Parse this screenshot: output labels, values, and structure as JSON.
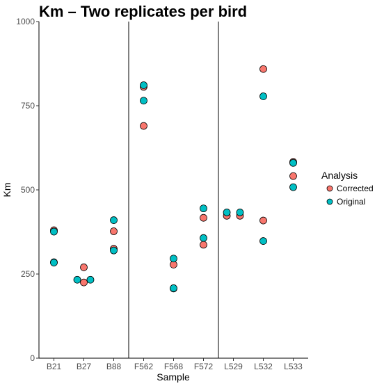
{
  "chart_data": {
    "type": "scatter",
    "title": "Km – Two replicates per bird",
    "xlabel": "Sample",
    "ylabel": "Km",
    "categories": [
      "B21",
      "B27",
      "B88",
      "F562",
      "F568",
      "F572",
      "L529",
      "L532",
      "L533"
    ],
    "ylim": [
      0,
      1000
    ],
    "yticks": [
      0,
      250,
      500,
      750,
      1000
    ],
    "grid": false,
    "legend": {
      "title": "Analysis",
      "position": "right"
    },
    "group_separators_after": [
      "B88",
      "F572"
    ],
    "series": [
      {
        "name": "Corrected",
        "color": "#F8766D",
        "points": [
          {
            "x": "B21",
            "y": 380,
            "offset": 0
          },
          {
            "x": "B21",
            "y": 285,
            "offset": 0
          },
          {
            "x": "B27",
            "y": 270,
            "offset": 0
          },
          {
            "x": "B27",
            "y": 225,
            "offset": 0
          },
          {
            "x": "B88",
            "y": 377,
            "offset": 0
          },
          {
            "x": "B88",
            "y": 325,
            "offset": 0
          },
          {
            "x": "F562",
            "y": 806,
            "offset": 0
          },
          {
            "x": "F562",
            "y": 690,
            "offset": 0
          },
          {
            "x": "F568",
            "y": 278,
            "offset": 0
          },
          {
            "x": "F568",
            "y": 207,
            "offset": 0
          },
          {
            "x": "F572",
            "y": 417,
            "offset": 0
          },
          {
            "x": "F572",
            "y": 337,
            "offset": 0
          },
          {
            "x": "L529",
            "y": 423,
            "offset": -0.22
          },
          {
            "x": "L529",
            "y": 423,
            "offset": 0.22
          },
          {
            "x": "L532",
            "y": 859,
            "offset": 0
          },
          {
            "x": "L532",
            "y": 409,
            "offset": 0
          },
          {
            "x": "L533",
            "y": 583,
            "offset": 0
          },
          {
            "x": "L533",
            "y": 541,
            "offset": 0
          }
        ]
      },
      {
        "name": "Original",
        "color": "#00BFC4",
        "points": [
          {
            "x": "B21",
            "y": 376,
            "offset": 0
          },
          {
            "x": "B21",
            "y": 284,
            "offset": 0
          },
          {
            "x": "B27",
            "y": 233,
            "offset": -0.22
          },
          {
            "x": "B27",
            "y": 233,
            "offset": 0.22
          },
          {
            "x": "B88",
            "y": 410,
            "offset": 0
          },
          {
            "x": "B88",
            "y": 320,
            "offset": 0
          },
          {
            "x": "F562",
            "y": 811,
            "offset": 0
          },
          {
            "x": "F562",
            "y": 765,
            "offset": 0
          },
          {
            "x": "F568",
            "y": 296,
            "offset": 0
          },
          {
            "x": "F568",
            "y": 208,
            "offset": 0
          },
          {
            "x": "F572",
            "y": 445,
            "offset": 0
          },
          {
            "x": "F572",
            "y": 357,
            "offset": 0
          },
          {
            "x": "L529",
            "y": 433,
            "offset": -0.22
          },
          {
            "x": "L529",
            "y": 433,
            "offset": 0.22
          },
          {
            "x": "L532",
            "y": 778,
            "offset": 0
          },
          {
            "x": "L532",
            "y": 348,
            "offset": 0
          },
          {
            "x": "L533",
            "y": 580,
            "offset": 0
          },
          {
            "x": "L533",
            "y": 508,
            "offset": 0
          }
        ]
      }
    ]
  }
}
